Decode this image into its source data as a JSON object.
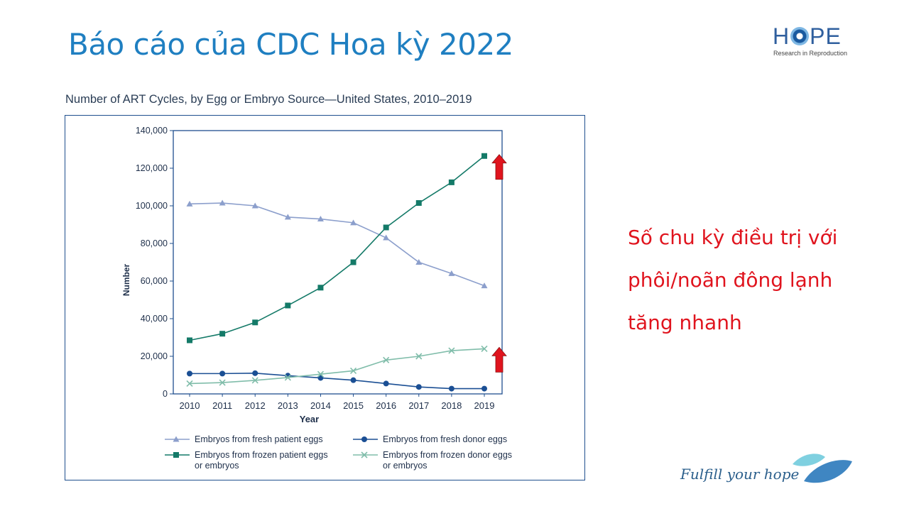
{
  "slide": {
    "title": "Báo cáo của CDC Hoa kỳ 2022",
    "side_text_lines": [
      "Số chu kỳ điều trị với",
      "phôi/noãn đông lạnh",
      "tăng nhanh"
    ],
    "footer_slogan": "Fulfill your hope",
    "logo": {
      "word_left": "H",
      "word_right": "PE",
      "tagline": "Research in Reproduction"
    },
    "colors": {
      "title": "#1f7fc1",
      "side_text": "#e0141e",
      "arrow": "#e0141e"
    }
  },
  "chart_data": {
    "type": "line",
    "title": "Number of ART Cycles, by Egg or Embryo Source—United States, 2010–2019",
    "xlabel": "Year",
    "ylabel": "Number",
    "x": [
      2010,
      2011,
      2012,
      2013,
      2014,
      2015,
      2016,
      2017,
      2018,
      2019
    ],
    "ylim": [
      0,
      140000
    ],
    "yticks": [
      0,
      20000,
      40000,
      60000,
      80000,
      100000,
      120000,
      140000
    ],
    "ytick_labels": [
      "0",
      "20,000",
      "40,000",
      "60,000",
      "80,000",
      "100,000",
      "120,000",
      "140,000"
    ],
    "grid": false,
    "legend_position": "bottom",
    "series": [
      {
        "name": "Embryos from fresh patient eggs",
        "marker": "triangle",
        "color": "#8c9fcc",
        "values": [
          101000,
          101500,
          100000,
          94000,
          93000,
          91000,
          83000,
          70000,
          64000,
          57500
        ]
      },
      {
        "name": "Embryos from fresh donor eggs",
        "marker": "circle",
        "color": "#1b4f94",
        "values": [
          10800,
          10800,
          11000,
          9700,
          8500,
          7300,
          5500,
          3700,
          2800,
          2800
        ]
      },
      {
        "name": "Embryos from frozen patient eggs or embryos",
        "marker": "square",
        "color": "#147a68",
        "values": [
          28500,
          32000,
          38000,
          47000,
          56500,
          70000,
          88500,
          101500,
          112500,
          126500
        ]
      },
      {
        "name": "Embryos from frozen donor eggs or embryos",
        "marker": "x",
        "color": "#80bdaa",
        "values": [
          5500,
          6000,
          7200,
          8700,
          10500,
          12300,
          18000,
          20000,
          23000,
          24000
        ]
      }
    ],
    "annotations": [
      {
        "type": "up-arrow",
        "series": "Embryos from frozen patient eggs or embryos"
      },
      {
        "type": "up-arrow",
        "series": "Embryos from frozen donor eggs or embryos"
      }
    ]
  }
}
